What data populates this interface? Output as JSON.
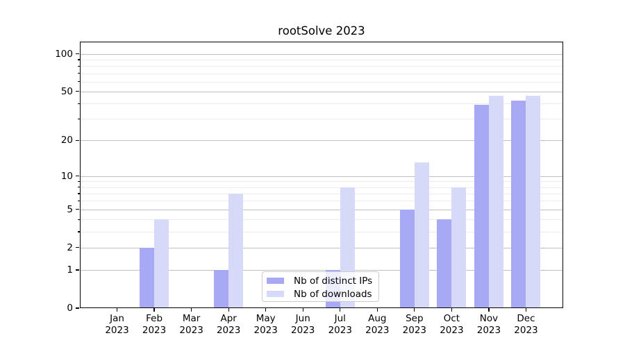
{
  "chart_data": {
    "type": "bar",
    "title": "rootSolve 2023",
    "categories": [
      "Jan 2023",
      "Feb 2023",
      "Mar 2023",
      "Apr 2023",
      "May 2023",
      "Jun 2023",
      "Jul 2023",
      "Aug 2023",
      "Sep 2023",
      "Oct 2023",
      "Nov 2023",
      "Dec 2023"
    ],
    "x_axis": {
      "months": [
        "Jan",
        "Feb",
        "Mar",
        "Apr",
        "May",
        "Jun",
        "Jul",
        "Aug",
        "Sep",
        "Oct",
        "Nov",
        "Dec"
      ],
      "year": "2023"
    },
    "y_axis": {
      "scale": "log1p",
      "ylim": [
        0,
        125
      ],
      "ticks": [
        0,
        1,
        2,
        5,
        10,
        20,
        50,
        100
      ],
      "minor_gridlines": [
        3,
        4,
        6,
        7,
        8,
        9,
        30,
        40,
        60,
        70,
        80,
        90
      ]
    },
    "grid": true,
    "legend_position": "bottom-center",
    "series": [
      {
        "name": "Nb of distinct IPs",
        "color": "#a7a9f4",
        "values": [
          0,
          2,
          0,
          1,
          0,
          0,
          1,
          0,
          5,
          4,
          39,
          42
        ]
      },
      {
        "name": "Nb of downloads",
        "color": "#d7d9f8",
        "values": [
          0,
          4,
          0,
          7,
          0,
          0,
          8,
          0,
          13,
          8,
          46,
          46
        ]
      }
    ],
    "colors": {
      "major_grid": "#bfbfbf",
      "minor_grid": "#ebebeb",
      "axis": "#000000",
      "background": "#ffffff"
    }
  }
}
